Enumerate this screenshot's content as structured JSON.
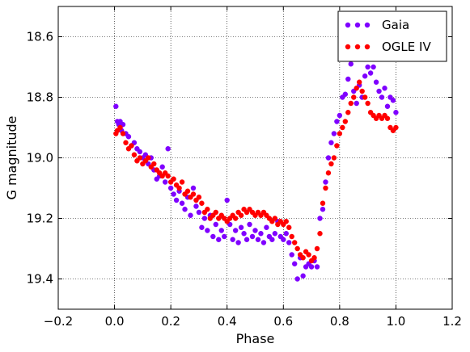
{
  "chart_data": {
    "type": "scatter",
    "xlabel": "Phase",
    "ylabel": "G magnitude",
    "xlim": [
      -0.2,
      1.2
    ],
    "ylim": [
      19.5,
      18.5
    ],
    "y_inverted": true,
    "xticks": [
      -0.2,
      0.0,
      0.2,
      0.4,
      0.6,
      0.8,
      1.0,
      1.2
    ],
    "xtick_labels": [
      "−0.2",
      "0.0",
      "0.2",
      "0.4",
      "0.6",
      "0.8",
      "1.0",
      "1.2"
    ],
    "yticks": [
      18.6,
      18.8,
      19.0,
      19.2,
      19.4
    ],
    "ytick_labels": [
      "18.6",
      "18.8",
      "19.0",
      "19.2",
      "19.4"
    ],
    "grid": true,
    "legend_position": "top-right",
    "series": [
      {
        "name": "Gaia",
        "color": "#7f00ff",
        "points": [
          [
            0.005,
            18.83
          ],
          [
            0.01,
            18.88
          ],
          [
            0.015,
            18.89
          ],
          [
            0.02,
            18.88
          ],
          [
            0.025,
            18.91
          ],
          [
            0.03,
            18.89
          ],
          [
            0.04,
            18.92
          ],
          [
            0.05,
            18.93
          ],
          [
            0.06,
            18.96
          ],
          [
            0.07,
            18.95
          ],
          [
            0.08,
            18.97
          ],
          [
            0.09,
            18.98
          ],
          [
            0.1,
            19.0
          ],
          [
            0.11,
            18.99
          ],
          [
            0.12,
            19.02
          ],
          [
            0.13,
            19.0
          ],
          [
            0.14,
            19.04
          ],
          [
            0.15,
            19.07
          ],
          [
            0.16,
            19.06
          ],
          [
            0.17,
            19.03
          ],
          [
            0.18,
            19.08
          ],
          [
            0.19,
            18.97
          ],
          [
            0.2,
            19.1
          ],
          [
            0.21,
            19.12
          ],
          [
            0.22,
            19.14
          ],
          [
            0.23,
            19.11
          ],
          [
            0.24,
            19.15
          ],
          [
            0.25,
            19.17
          ],
          [
            0.26,
            19.13
          ],
          [
            0.27,
            19.19
          ],
          [
            0.28,
            19.1
          ],
          [
            0.29,
            19.16
          ],
          [
            0.3,
            19.18
          ],
          [
            0.31,
            19.23
          ],
          [
            0.32,
            19.2
          ],
          [
            0.33,
            19.24
          ],
          [
            0.34,
            19.19
          ],
          [
            0.35,
            19.26
          ],
          [
            0.36,
            19.22
          ],
          [
            0.37,
            19.27
          ],
          [
            0.38,
            19.24
          ],
          [
            0.39,
            19.26
          ],
          [
            0.4,
            19.14
          ],
          [
            0.41,
            19.22
          ],
          [
            0.42,
            19.27
          ],
          [
            0.43,
            19.24
          ],
          [
            0.44,
            19.28
          ],
          [
            0.45,
            19.23
          ],
          [
            0.46,
            19.25
          ],
          [
            0.47,
            19.27
          ],
          [
            0.48,
            19.22
          ],
          [
            0.49,
            19.26
          ],
          [
            0.5,
            19.24
          ],
          [
            0.51,
            19.27
          ],
          [
            0.52,
            19.25
          ],
          [
            0.53,
            19.28
          ],
          [
            0.54,
            19.23
          ],
          [
            0.55,
            19.26
          ],
          [
            0.56,
            19.27
          ],
          [
            0.57,
            19.25
          ],
          [
            0.58,
            19.21
          ],
          [
            0.59,
            19.26
          ],
          [
            0.6,
            19.27
          ],
          [
            0.61,
            19.25
          ],
          [
            0.62,
            19.28
          ],
          [
            0.63,
            19.32
          ],
          [
            0.64,
            19.35
          ],
          [
            0.65,
            19.4
          ],
          [
            0.66,
            19.33
          ],
          [
            0.67,
            19.39
          ],
          [
            0.68,
            19.36
          ],
          [
            0.69,
            19.35
          ],
          [
            0.7,
            19.36
          ],
          [
            0.71,
            19.34
          ],
          [
            0.72,
            19.36
          ],
          [
            0.73,
            19.2
          ],
          [
            0.74,
            19.17
          ],
          [
            0.75,
            19.08
          ],
          [
            0.76,
            19.0
          ],
          [
            0.77,
            18.95
          ],
          [
            0.78,
            18.92
          ],
          [
            0.79,
            18.88
          ],
          [
            0.8,
            18.86
          ],
          [
            0.81,
            18.8
          ],
          [
            0.82,
            18.79
          ],
          [
            0.83,
            18.74
          ],
          [
            0.84,
            18.69
          ],
          [
            0.85,
            18.78
          ],
          [
            0.86,
            18.82
          ],
          [
            0.87,
            18.76
          ],
          [
            0.88,
            18.8
          ],
          [
            0.89,
            18.73
          ],
          [
            0.9,
            18.7
          ],
          [
            0.91,
            18.72
          ],
          [
            0.92,
            18.7
          ],
          [
            0.93,
            18.75
          ],
          [
            0.94,
            18.78
          ],
          [
            0.95,
            18.8
          ],
          [
            0.96,
            18.77
          ],
          [
            0.97,
            18.83
          ],
          [
            0.98,
            18.8
          ],
          [
            0.99,
            18.81
          ],
          [
            1.0,
            18.85
          ]
        ]
      },
      {
        "name": "OGLE IV",
        "color": "#ff0000",
        "points": [
          [
            0.005,
            18.92
          ],
          [
            0.01,
            18.91
          ],
          [
            0.02,
            18.9
          ],
          [
            0.03,
            18.92
          ],
          [
            0.04,
            18.95
          ],
          [
            0.05,
            18.97
          ],
          [
            0.06,
            18.96
          ],
          [
            0.07,
            18.99
          ],
          [
            0.08,
            19.01
          ],
          [
            0.09,
            19.0
          ],
          [
            0.1,
            19.02
          ],
          [
            0.11,
            19.01
          ],
          [
            0.12,
            19.0
          ],
          [
            0.13,
            19.03
          ],
          [
            0.14,
            19.02
          ],
          [
            0.15,
            19.04
          ],
          [
            0.16,
            19.05
          ],
          [
            0.17,
            19.06
          ],
          [
            0.18,
            19.05
          ],
          [
            0.19,
            19.06
          ],
          [
            0.2,
            19.08
          ],
          [
            0.21,
            19.07
          ],
          [
            0.22,
            19.09
          ],
          [
            0.23,
            19.1
          ],
          [
            0.24,
            19.08
          ],
          [
            0.25,
            19.12
          ],
          [
            0.26,
            19.11
          ],
          [
            0.27,
            19.13
          ],
          [
            0.28,
            19.12
          ],
          [
            0.29,
            19.14
          ],
          [
            0.3,
            19.13
          ],
          [
            0.31,
            19.15
          ],
          [
            0.32,
            19.18
          ],
          [
            0.33,
            19.17
          ],
          [
            0.34,
            19.2
          ],
          [
            0.35,
            19.19
          ],
          [
            0.36,
            19.18
          ],
          [
            0.37,
            19.2
          ],
          [
            0.38,
            19.19
          ],
          [
            0.39,
            19.2
          ],
          [
            0.4,
            19.21
          ],
          [
            0.41,
            19.2
          ],
          [
            0.42,
            19.19
          ],
          [
            0.43,
            19.2
          ],
          [
            0.44,
            19.18
          ],
          [
            0.45,
            19.19
          ],
          [
            0.46,
            19.17
          ],
          [
            0.47,
            19.18
          ],
          [
            0.48,
            19.17
          ],
          [
            0.49,
            19.18
          ],
          [
            0.5,
            19.19
          ],
          [
            0.51,
            19.18
          ],
          [
            0.52,
            19.19
          ],
          [
            0.53,
            19.18
          ],
          [
            0.54,
            19.19
          ],
          [
            0.55,
            19.2
          ],
          [
            0.56,
            19.21
          ],
          [
            0.57,
            19.2
          ],
          [
            0.58,
            19.22
          ],
          [
            0.59,
            19.21
          ],
          [
            0.6,
            19.22
          ],
          [
            0.61,
            19.21
          ],
          [
            0.62,
            19.23
          ],
          [
            0.63,
            19.26
          ],
          [
            0.64,
            19.28
          ],
          [
            0.65,
            19.3
          ],
          [
            0.66,
            19.32
          ],
          [
            0.67,
            19.33
          ],
          [
            0.68,
            19.31
          ],
          [
            0.69,
            19.32
          ],
          [
            0.7,
            19.34
          ],
          [
            0.71,
            19.33
          ],
          [
            0.72,
            19.3
          ],
          [
            0.73,
            19.25
          ],
          [
            0.74,
            19.15
          ],
          [
            0.75,
            19.1
          ],
          [
            0.76,
            19.05
          ],
          [
            0.77,
            19.02
          ],
          [
            0.78,
            19.0
          ],
          [
            0.79,
            18.96
          ],
          [
            0.8,
            18.92
          ],
          [
            0.81,
            18.9
          ],
          [
            0.82,
            18.88
          ],
          [
            0.83,
            18.85
          ],
          [
            0.84,
            18.82
          ],
          [
            0.85,
            18.8
          ],
          [
            0.86,
            18.77
          ],
          [
            0.87,
            18.75
          ],
          [
            0.88,
            18.78
          ],
          [
            0.89,
            18.8
          ],
          [
            0.9,
            18.82
          ],
          [
            0.91,
            18.85
          ],
          [
            0.92,
            18.86
          ],
          [
            0.93,
            18.87
          ],
          [
            0.94,
            18.86
          ],
          [
            0.95,
            18.87
          ],
          [
            0.96,
            18.86
          ],
          [
            0.97,
            18.87
          ],
          [
            0.98,
            18.9
          ],
          [
            0.99,
            18.91
          ],
          [
            1.0,
            18.9
          ]
        ]
      }
    ]
  }
}
